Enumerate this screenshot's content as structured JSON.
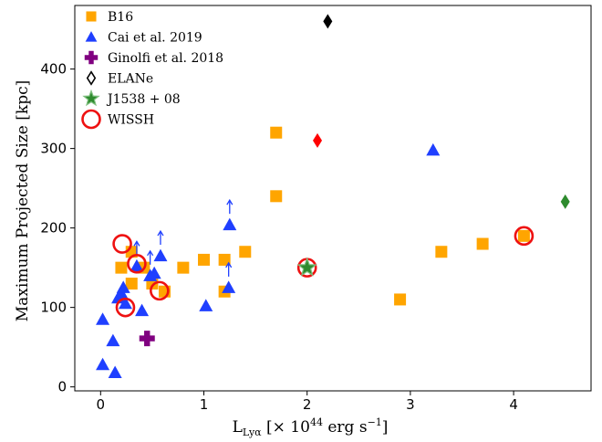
{
  "chart_data": {
    "type": "scatter",
    "title": "",
    "xlabel_main": "L",
    "xlabel_sub": "Lyα",
    "xlabel_rest": " [× 10",
    "xlabel_exp": "44",
    "xlabel_unit": " erg s",
    "xlabel_unit_exp": "−1",
    "xlabel_close": "]",
    "ylabel": "Maximum Projected Size [kpc]",
    "xlim": [
      -0.25,
      4.75
    ],
    "ylim": [
      -5,
      480
    ],
    "xticks": [
      0,
      1,
      2,
      3,
      4
    ],
    "yticks": [
      0,
      100,
      200,
      300,
      400
    ],
    "grid": false,
    "legend_position": "top-left",
    "colors": {
      "orange": "#ffa500",
      "blue": "#1f3fff",
      "purple": "#800080",
      "black": "#000000",
      "red": "#ff0000",
      "green": "#2e8b2e",
      "ring": "#ee1111"
    },
    "series": [
      {
        "name": "B16",
        "marker": "square",
        "color": "#ffa500",
        "points": [
          {
            "x": 0.2,
            "y": 150
          },
          {
            "x": 0.3,
            "y": 130
          },
          {
            "x": 0.3,
            "y": 170
          },
          {
            "x": 0.42,
            "y": 150
          },
          {
            "x": 0.5,
            "y": 130
          },
          {
            "x": 0.62,
            "y": 120
          },
          {
            "x": 0.8,
            "y": 150
          },
          {
            "x": 1.0,
            "y": 160
          },
          {
            "x": 1.2,
            "y": 160
          },
          {
            "x": 1.2,
            "y": 120
          },
          {
            "x": 1.4,
            "y": 170
          },
          {
            "x": 1.7,
            "y": 320
          },
          {
            "x": 1.7,
            "y": 240
          },
          {
            "x": 2.9,
            "y": 110
          },
          {
            "x": 3.3,
            "y": 170
          },
          {
            "x": 3.7,
            "y": 180
          },
          {
            "x": 4.1,
            "y": 190
          }
        ]
      },
      {
        "name": "Cai et al. 2019",
        "marker": "triangle",
        "color": "#1f3fff",
        "points": [
          {
            "x": 0.02,
            "y": 85
          },
          {
            "x": 0.02,
            "y": 28
          },
          {
            "x": 0.12,
            "y": 58
          },
          {
            "x": 0.14,
            "y": 18
          },
          {
            "x": 0.17,
            "y": 112
          },
          {
            "x": 0.2,
            "y": 118
          },
          {
            "x": 0.22,
            "y": 125
          },
          {
            "x": 0.24,
            "y": 105
          },
          {
            "x": 0.35,
            "y": 152
          },
          {
            "x": 0.4,
            "y": 96
          },
          {
            "x": 0.48,
            "y": 140
          },
          {
            "x": 0.52,
            "y": 143
          },
          {
            "x": 0.58,
            "y": 165
          },
          {
            "x": 1.02,
            "y": 102
          },
          {
            "x": 1.24,
            "y": 125
          },
          {
            "x": 1.25,
            "y": 204
          },
          {
            "x": 3.22,
            "y": 298
          }
        ],
        "lower_limits": [
          {
            "x": 0.35,
            "y": 152
          },
          {
            "x": 0.48,
            "y": 140
          },
          {
            "x": 0.58,
            "y": 165
          },
          {
            "x": 1.24,
            "y": 125
          },
          {
            "x": 1.25,
            "y": 204
          }
        ]
      },
      {
        "name": "Ginolfi et al. 2018",
        "marker": "plus",
        "color": "#800080",
        "points": [
          {
            "x": 0.45,
            "y": 61
          }
        ]
      },
      {
        "name": "ELANe",
        "marker": "diamond",
        "color": "#000000",
        "legend_hollow": true,
        "points": [
          {
            "x": 2.2,
            "y": 460,
            "color": "#000000"
          },
          {
            "x": 2.1,
            "y": 310,
            "color": "#ff0000"
          },
          {
            "x": 4.5,
            "y": 233,
            "color": "#2e8b2e"
          }
        ]
      },
      {
        "name": "J1538 + 08",
        "marker": "star",
        "color": "#2e8b2e",
        "points": [
          {
            "x": 2.0,
            "y": 150
          }
        ]
      },
      {
        "name": "WISSH",
        "marker": "ring",
        "color": "#ee1111",
        "points": [
          {
            "x": 0.21,
            "y": 180
          },
          {
            "x": 0.35,
            "y": 155
          },
          {
            "x": 0.24,
            "y": 100
          },
          {
            "x": 0.57,
            "y": 121
          },
          {
            "x": 2.0,
            "y": 150
          },
          {
            "x": 4.1,
            "y": 190
          }
        ]
      }
    ]
  }
}
